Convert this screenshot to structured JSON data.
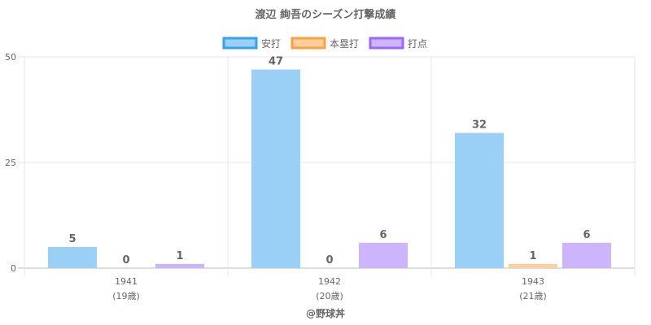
{
  "chart_data": {
    "type": "bar",
    "title": "渡辺 絢吾のシーズン打撃成績",
    "categories": [
      {
        "year": "1941",
        "age": "(19歳)"
      },
      {
        "year": "1942",
        "age": "(20歳)"
      },
      {
        "year": "1943",
        "age": "(21歳)"
      }
    ],
    "series": [
      {
        "name": "安打",
        "values": [
          5,
          47,
          32
        ],
        "fill": "#9ad0f5",
        "stroke": "#36a2eb"
      },
      {
        "name": "本塁打",
        "values": [
          0,
          0,
          1
        ],
        "fill": "#ffcf9f",
        "stroke": "#ff9f40"
      },
      {
        "name": "打点",
        "values": [
          1,
          6,
          6
        ],
        "fill": "#cdb5fd",
        "stroke": "#9966ff"
      }
    ],
    "ylim": [
      0,
      50
    ],
    "yticks": [
      0,
      25,
      50
    ],
    "grid": true,
    "legend_position": "top"
  },
  "credit": "@野球丼"
}
